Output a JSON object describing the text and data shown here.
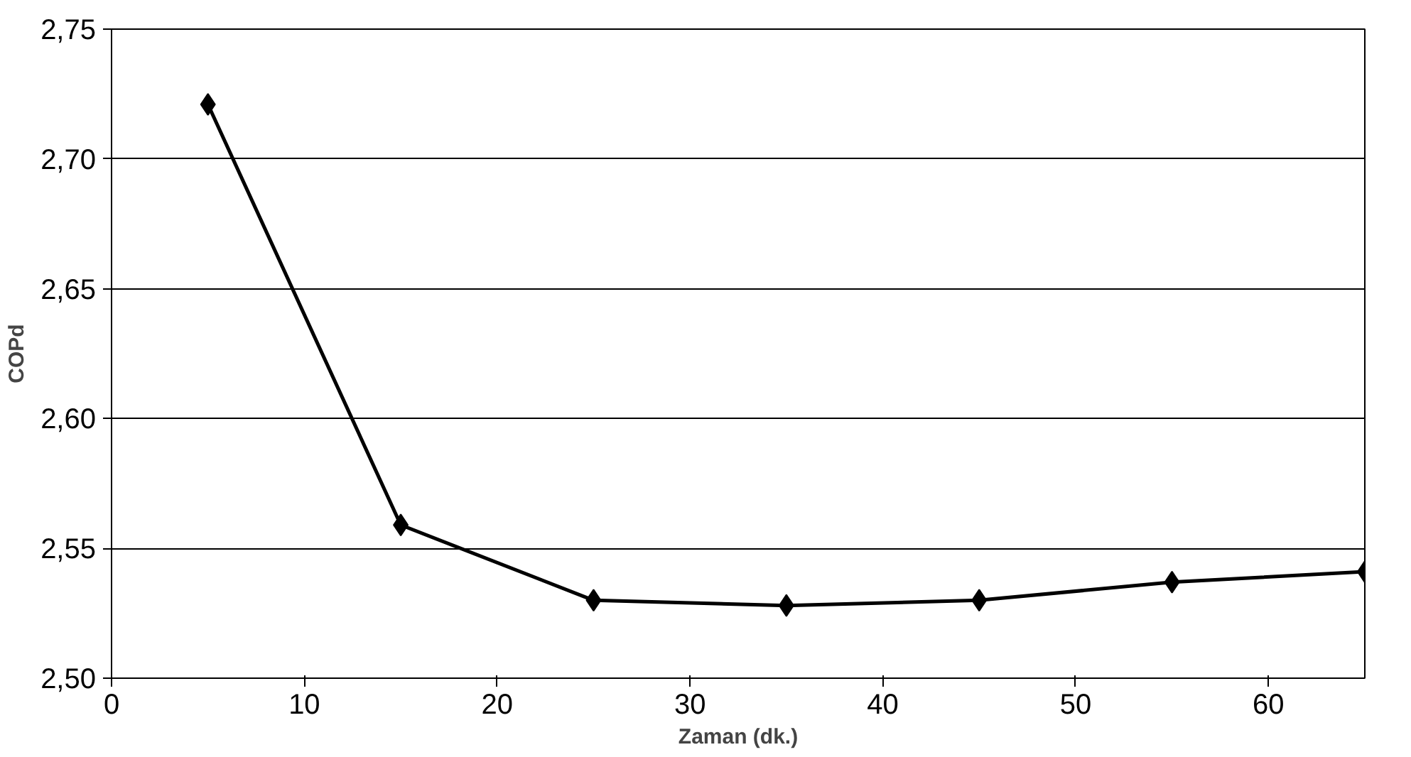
{
  "chart_data": {
    "type": "line",
    "xlabel": "Zaman (dk.)",
    "ylabel": "COPd",
    "x": [
      5,
      15,
      25,
      35,
      45,
      55,
      65
    ],
    "series": [
      {
        "color": "#000000",
        "values": [
          2.721,
          2.559,
          2.53,
          2.528,
          2.53,
          2.537,
          2.541
        ]
      }
    ],
    "xlim": [
      0,
      65
    ],
    "xticks": [
      0,
      10,
      20,
      30,
      40,
      50,
      60
    ],
    "ylim": [
      2.5,
      2.75
    ],
    "yticks": [
      {
        "value": 2.5,
        "label": "2,50"
      },
      {
        "value": 2.55,
        "label": "2,55"
      },
      {
        "value": 2.6,
        "label": "2,60"
      },
      {
        "value": 2.65,
        "label": "2,65"
      },
      {
        "value": 2.7,
        "label": "2,70"
      },
      {
        "value": 2.75,
        "label": "2,75"
      }
    ],
    "grid": "y",
    "marker": "diamond",
    "line_style": "solid"
  }
}
